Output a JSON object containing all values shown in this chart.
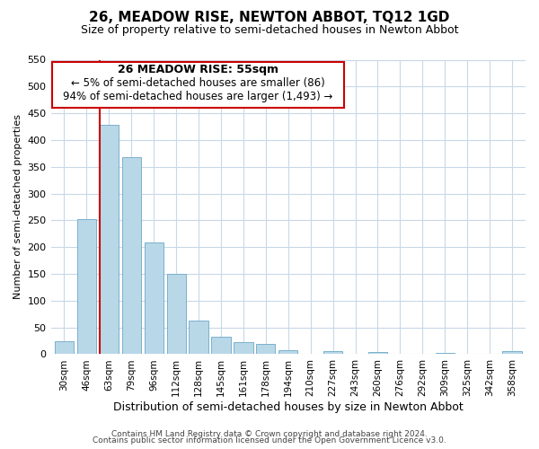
{
  "title": "26, MEADOW RISE, NEWTON ABBOT, TQ12 1GD",
  "subtitle": "Size of property relative to semi-detached houses in Newton Abbot",
  "xlabel": "Distribution of semi-detached houses by size in Newton Abbot",
  "ylabel": "Number of semi-detached properties",
  "bar_labels": [
    "30sqm",
    "46sqm",
    "63sqm",
    "79sqm",
    "96sqm",
    "112sqm",
    "128sqm",
    "145sqm",
    "161sqm",
    "178sqm",
    "194sqm",
    "210sqm",
    "227sqm",
    "243sqm",
    "260sqm",
    "276sqm",
    "292sqm",
    "309sqm",
    "325sqm",
    "342sqm",
    "358sqm"
  ],
  "bar_heights": [
    25,
    253,
    428,
    368,
    208,
    150,
    63,
    33,
    23,
    19,
    8,
    0,
    5,
    0,
    4,
    0,
    0,
    3,
    0,
    0,
    5
  ],
  "bar_color": "#b8d8e8",
  "bar_edge_color": "#7ab0cc",
  "highlight_color": "#cc0000",
  "ylim": [
    0,
    550
  ],
  "yticks": [
    0,
    50,
    100,
    150,
    200,
    250,
    300,
    350,
    400,
    450,
    500,
    550
  ],
  "annotation_title": "26 MEADOW RISE: 55sqm",
  "annotation_line1": "← 5% of semi-detached houses are smaller (86)",
  "annotation_line2": "94% of semi-detached houses are larger (1,493) →",
  "footnote1": "Contains HM Land Registry data © Crown copyright and database right 2024.",
  "footnote2": "Contains public sector information licensed under the Open Government Licence v3.0.",
  "bg_color": "#ffffff",
  "grid_color": "#c8d8e8",
  "title_fontsize": 11,
  "subtitle_fontsize": 9,
  "xlabel_fontsize": 9,
  "ylabel_fontsize": 8,
  "tick_fontsize": 8,
  "xtick_fontsize": 7.5,
  "footnote_fontsize": 6.5
}
